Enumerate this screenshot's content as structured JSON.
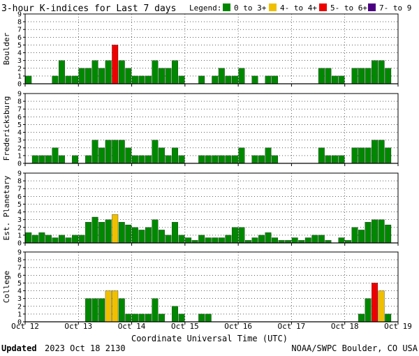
{
  "header": {
    "title": "3-hour K-indices for Last 7 days",
    "legend_label": "Legend:",
    "legend": [
      {
        "label": "0 to 3+",
        "color": "#008800"
      },
      {
        "label": "4- to 4+",
        "color": "#f0c000"
      },
      {
        "label": "5- to 6+",
        "color": "#ee0000"
      },
      {
        "label": "7- to 9",
        "color": "#4b0082"
      }
    ]
  },
  "footer": {
    "updated_label": "Updated",
    "updated_value": "2023 Oct 18 2130",
    "credit": "NOAA/SWPC Boulder, CO USA"
  },
  "chart_data": {
    "type": "bar",
    "xlabel": "Coordinate Universal Time (UTC)",
    "x_ticks": [
      "Oct 12",
      "Oct 13",
      "Oct 14",
      "Oct 15",
      "Oct 16",
      "Oct 17",
      "Oct 18",
      "Oct 19"
    ],
    "y_ticks": [
      "0",
      "1",
      "2",
      "3",
      "4",
      "5",
      "6",
      "7",
      "8",
      "9"
    ],
    "ylim": [
      0,
      9
    ],
    "bins_per_day": 8,
    "grid": true,
    "colors": {
      "quiet": "#008800",
      "active": "#f0c000",
      "storm": "#ee0000",
      "severe": "#4b0082"
    },
    "panels": [
      {
        "name": "Boulder",
        "values": [
          1,
          0,
          0,
          0,
          1,
          3,
          1,
          1,
          2,
          2,
          3,
          2,
          3,
          5,
          3,
          2,
          1,
          1,
          1,
          3,
          2,
          2,
          3,
          1,
          0,
          0,
          1,
          0,
          1,
          2,
          1,
          1,
          2,
          0,
          1,
          0,
          1,
          1,
          0,
          0,
          0,
          0,
          0,
          0,
          2,
          2,
          1,
          1,
          0,
          2,
          2,
          2,
          3,
          3,
          2,
          0
        ]
      },
      {
        "name": "Fredericksburg",
        "values": [
          0,
          1,
          1,
          1,
          2,
          1,
          0,
          1,
          0,
          1,
          3,
          2,
          3,
          3,
          3,
          2,
          1,
          1,
          1,
          3,
          2,
          1,
          2,
          1,
          0,
          0,
          1,
          1,
          1,
          1,
          1,
          1,
          2,
          0,
          1,
          1,
          2,
          1,
          0,
          0,
          0,
          0,
          0,
          0,
          2,
          1,
          1,
          1,
          0,
          2,
          2,
          2,
          3,
          3,
          2,
          0
        ]
      },
      {
        "name": "Est. Planetary",
        "values": [
          1.33,
          1,
          1.33,
          1,
          0.67,
          1,
          0.67,
          1,
          1,
          2.67,
          3.33,
          2.67,
          3,
          3.67,
          2.67,
          2.33,
          2,
          1.67,
          2,
          3,
          1.67,
          1,
          2.67,
          1,
          0.67,
          0.33,
          1,
          0.67,
          0.67,
          0.67,
          1,
          2,
          2,
          0.33,
          0.67,
          1,
          1.33,
          0.67,
          0.33,
          0.33,
          0.67,
          0.33,
          0.67,
          1,
          1,
          0.33,
          0,
          0.67,
          0.33,
          2,
          1.67,
          2.67,
          3,
          3,
          2.33,
          0
        ]
      },
      {
        "name": "College",
        "values": [
          0,
          0,
          0,
          0,
          0,
          0,
          0,
          0,
          0,
          3,
          3,
          3,
          4,
          4,
          3,
          1,
          1,
          1,
          1,
          3,
          1,
          0,
          2,
          1,
          0,
          0,
          1,
          1,
          0,
          0,
          0,
          0,
          0,
          0,
          0,
          0,
          0,
          0,
          0,
          0,
          0,
          0,
          0,
          0,
          0,
          0,
          0,
          0,
          0,
          0,
          1,
          3,
          5,
          4,
          1,
          0
        ]
      }
    ]
  }
}
